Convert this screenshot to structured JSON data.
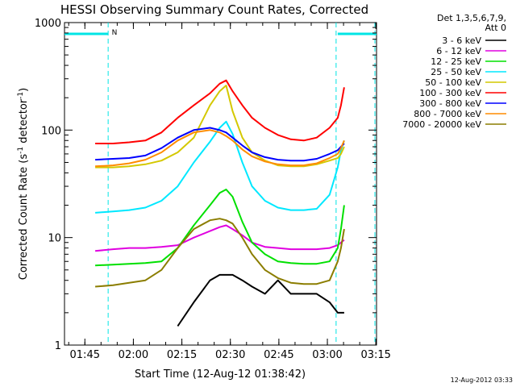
{
  "chart_data": {
    "type": "line",
    "title": "HESSI Observing Summary Count Rates, Corrected",
    "ylabel_prefix": "Corrected Count Rate (s",
    "ylabel_sup1": "-1",
    "ylabel_mid": " detector",
    "ylabel_sup2": "-1",
    "ylabel_suffix": ")",
    "xlabel": "Start Time (12-Aug-12 01:38:42)",
    "yscale": "log",
    "ylim": [
      1,
      1000
    ],
    "xlim_minutes": [
      0,
      96.5
    ],
    "x_ticks": [
      {
        "label": "01:45",
        "min": 6.3
      },
      {
        "label": "02:00",
        "min": 21.3
      },
      {
        "label": "02:15",
        "min": 36.3
      },
      {
        "label": "02:30",
        "min": 51.3
      },
      {
        "label": "02:45",
        "min": 66.3
      },
      {
        "label": "03:00",
        "min": 81.3
      },
      {
        "label": "03:15",
        "min": 96.3
      }
    ],
    "y_ticks": [
      {
        "label": "1",
        "value": 1
      },
      {
        "label": "10",
        "value": 10
      },
      {
        "label": "100",
        "value": 100
      },
      {
        "label": "1000",
        "value": 1000
      }
    ],
    "legend_header": [
      "Det 1,3,5,6,7,9,",
      "Att 0"
    ],
    "footer": "12-Aug-2012 03:33",
    "annotation_n": "N",
    "night_segments": [
      {
        "start": 0,
        "end": 13.5
      },
      {
        "start": 84.5,
        "end": 96.5
      }
    ],
    "markers": [
      13.5,
      84.0,
      96.0
    ],
    "marker_color": "#00e5e5",
    "x": [
      9.5,
      15,
      20,
      25,
      30,
      35,
      40,
      45,
      48,
      50,
      52,
      55,
      58,
      62,
      66,
      70,
      74,
      78,
      82,
      84.5,
      85.5,
      86.5
    ],
    "series": [
      {
        "name": "3 - 6 keV",
        "color": "#000000",
        "values": [
          null,
          null,
          null,
          null,
          null,
          1.5,
          2.5,
          4,
          4.5,
          4.5,
          4.5,
          4,
          3.5,
          3,
          4,
          3,
          3,
          3,
          2.5,
          2,
          2,
          2
        ]
      },
      {
        "name": "6 - 12 keV",
        "color": "#e000e0",
        "values": [
          7.5,
          7.8,
          8,
          8,
          8.2,
          8.5,
          10,
          11.5,
          12.5,
          13,
          12,
          10.5,
          9,
          8.2,
          8,
          7.8,
          7.8,
          7.8,
          8,
          8.5,
          9,
          9.5
        ]
      },
      {
        "name": "12 - 25 keV",
        "color": "#00e000",
        "values": [
          5.5,
          5.6,
          5.7,
          5.8,
          6,
          8,
          13,
          20,
          26,
          28,
          24,
          14,
          9,
          7,
          6,
          5.8,
          5.7,
          5.7,
          6,
          8,
          12,
          20
        ]
      },
      {
        "name": "25 - 50 keV",
        "color": "#00e8ff",
        "values": [
          17,
          17.5,
          18,
          19,
          22,
          30,
          50,
          78,
          105,
          120,
          92,
          50,
          30,
          22,
          19,
          18,
          18,
          18.5,
          25,
          45,
          65,
          80
        ]
      },
      {
        "name": "50 - 100 keV",
        "color": "#d4c800",
        "values": [
          45,
          45,
          46,
          48,
          52,
          62,
          85,
          170,
          230,
          260,
          150,
          85,
          62,
          52,
          47,
          46,
          46,
          48,
          52,
          55,
          60,
          70
        ]
      },
      {
        "name": "100 - 300 keV",
        "color": "#ff0000",
        "values": [
          75,
          75,
          77,
          80,
          95,
          130,
          170,
          220,
          270,
          290,
          230,
          170,
          130,
          105,
          90,
          82,
          80,
          85,
          105,
          130,
          170,
          250
        ]
      },
      {
        "name": "300 - 800 keV",
        "color": "#0000ff",
        "values": [
          53,
          54,
          55,
          58,
          68,
          85,
          100,
          105,
          100,
          95,
          85,
          72,
          62,
          56,
          53,
          52,
          52,
          54,
          60,
          65,
          70,
          75
        ]
      },
      {
        "name": "800 - 7000 keV",
        "color": "#ff8c00",
        "values": [
          46,
          47,
          49,
          53,
          62,
          80,
          95,
          100,
          95,
          88,
          80,
          66,
          57,
          51,
          48,
          47,
          47,
          49,
          55,
          60,
          68,
          80
        ]
      },
      {
        "name": "7000 - 20000 keV",
        "color": "#8b7d00",
        "values": [
          3.5,
          3.6,
          3.8,
          4,
          5,
          8,
          12,
          14.5,
          15,
          14.5,
          13.5,
          10,
          7,
          5,
          4.2,
          3.8,
          3.7,
          3.7,
          4,
          6,
          8,
          12
        ]
      }
    ]
  }
}
